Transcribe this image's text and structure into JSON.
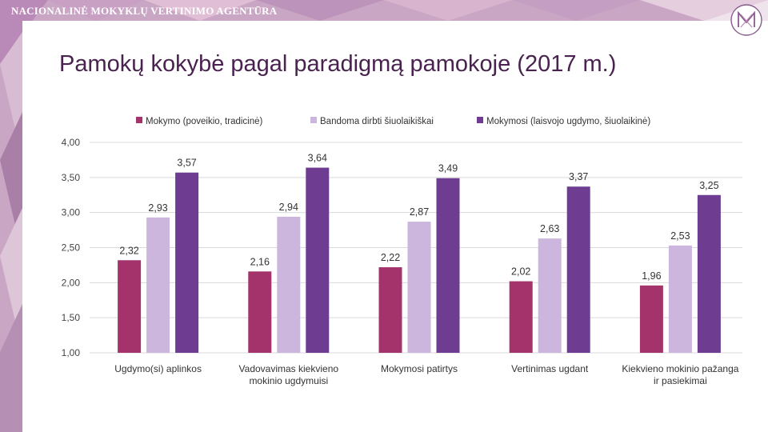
{
  "header": {
    "agency_name": "NACIONALINĖ MOKYKLŲ VERTINIMO AGENTŪRA",
    "logo_icon": "nmva-logo-icon"
  },
  "slide": {
    "title": "Pamokų kokybė pagal paradigmą pamokoje (2017 m.)"
  },
  "colors": {
    "accent": "#4a2250",
    "series": [
      "#a3336a",
      "#cdb6dd",
      "#6e3d91"
    ],
    "grid": "#d9d9d9"
  },
  "chart_data": {
    "type": "bar",
    "categories": [
      [
        "Ugdymo(si) aplinkos"
      ],
      [
        "Vadovavimas kiekvieno",
        "mokinio ugdymuisi"
      ],
      [
        "Mokymosi patirtys"
      ],
      [
        "Vertinimas ugdant"
      ],
      [
        "Kiekvieno mokinio pažanga",
        "ir pasiekimai"
      ]
    ],
    "series": [
      {
        "name": "Mokymo (poveikio, tradicinė)",
        "values": [
          2.32,
          2.16,
          2.22,
          2.02,
          1.96
        ],
        "labels": [
          "2,32",
          "2,16",
          "2,22",
          "2,02",
          "1,96"
        ]
      },
      {
        "name": "Bandoma dirbti šiuolaikiškai",
        "values": [
          2.93,
          2.94,
          2.87,
          2.63,
          2.53
        ],
        "labels": [
          "2,93",
          "2,94",
          "2,87",
          "2,63",
          "2,53"
        ]
      },
      {
        "name": "Mokymosi (laisvojo ugdymo, šiuolaikinė)",
        "values": [
          3.57,
          3.64,
          3.49,
          3.37,
          3.25
        ],
        "labels": [
          "3,57",
          "3,64",
          "3,49",
          "3,37",
          "3,25"
        ]
      }
    ],
    "ylim": [
      1.0,
      4.0
    ],
    "yticks": [
      "1,00",
      "1,50",
      "2,00",
      "2,50",
      "3,00",
      "3,50",
      "4,00"
    ],
    "ytick_values": [
      1.0,
      1.5,
      2.0,
      2.5,
      3.0,
      3.5,
      4.0
    ],
    "legend_position": "top",
    "grid": true
  }
}
